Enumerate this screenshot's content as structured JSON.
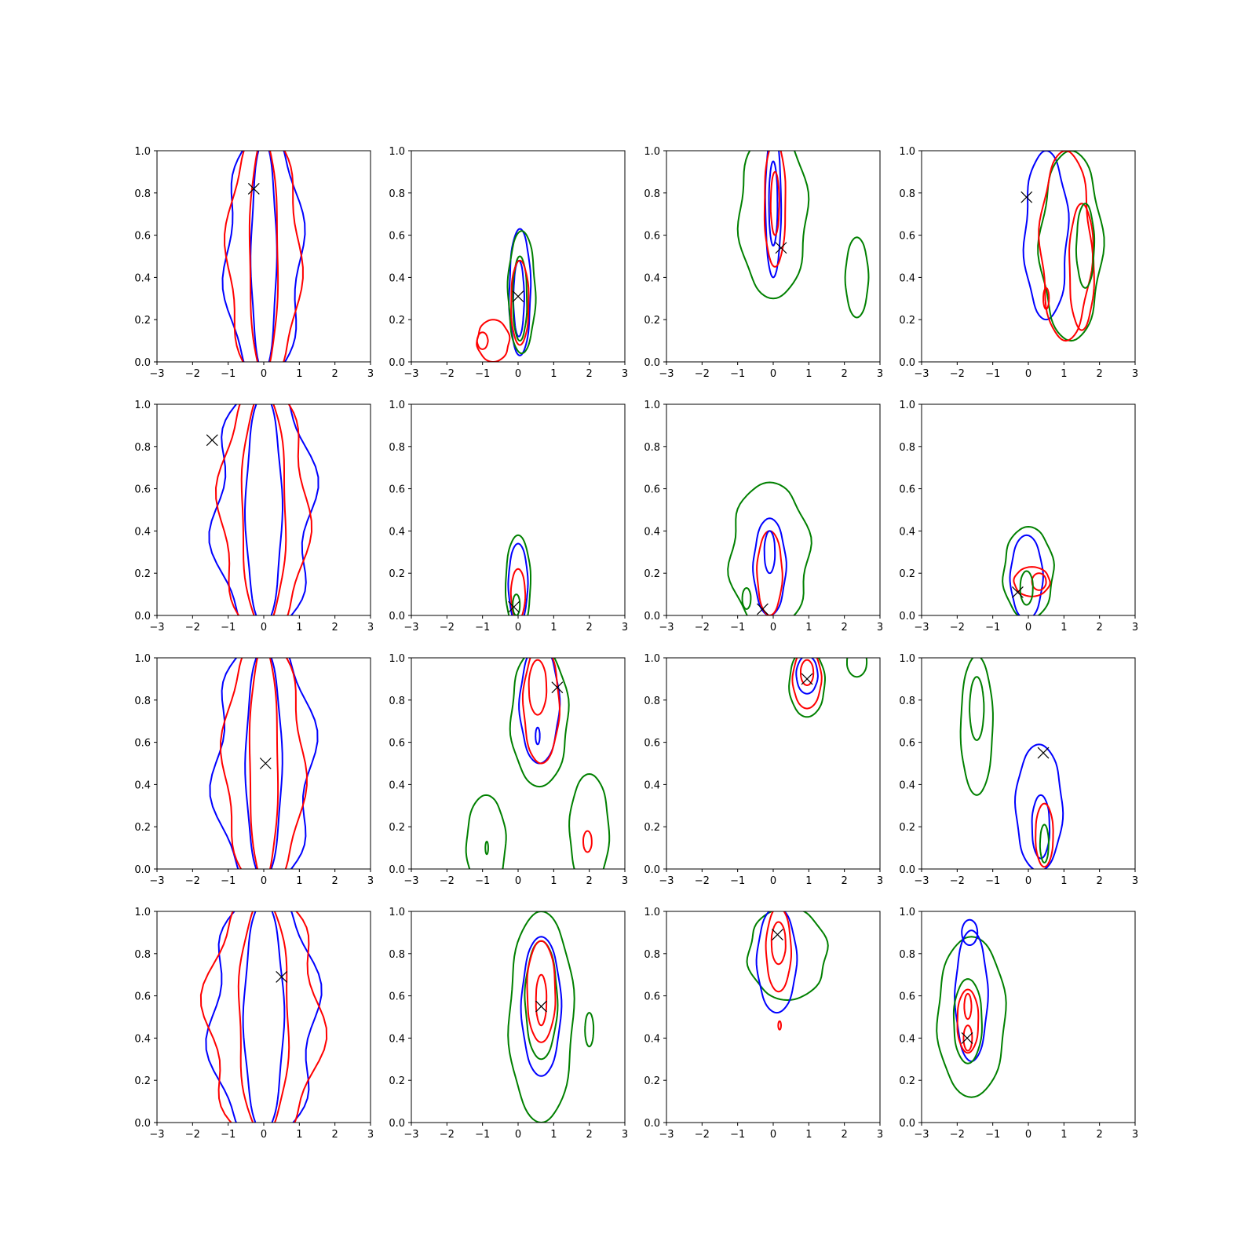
{
  "figure": {
    "layout": "4x4 grid of contour plots"
  },
  "colors": {
    "blue": "#0000ff",
    "red": "#ff0000",
    "green": "#008000",
    "marker": "#000000"
  },
  "axes_common": {
    "xlim": [
      -3,
      3
    ],
    "ylim": [
      0,
      1
    ],
    "xticks": [
      "−3",
      "−2",
      "−1",
      "0",
      "1",
      "2",
      "3"
    ],
    "yticks": [
      "0.0",
      "0.2",
      "0.4",
      "0.6",
      "0.8",
      "1.0"
    ]
  },
  "chart_data": [
    {
      "type": "contour",
      "row": 0,
      "col": 0,
      "marker": {
        "x": -0.28,
        "y": 0.82
      },
      "contours": [
        {
          "color": "blue",
          "cx": 0.0,
          "cy": 0.5,
          "rx": 1.05,
          "ry": 0.6,
          "wobble": 0.14
        },
        {
          "color": "blue",
          "cx": 0.0,
          "cy": 0.5,
          "rx": 0.35,
          "ry": 0.55,
          "wobble": 0.06
        },
        {
          "color": "red",
          "cx": 0.0,
          "cy": 0.5,
          "rx": 1.0,
          "ry": 0.6,
          "wobble": 0.12
        },
        {
          "color": "red",
          "cx": 0.0,
          "cy": 0.5,
          "rx": 0.4,
          "ry": 0.56,
          "wobble": 0.05
        }
      ]
    },
    {
      "type": "contour",
      "row": 0,
      "col": 1,
      "marker": {
        "x": 0.0,
        "y": 0.31
      },
      "contours": [
        {
          "color": "blue",
          "cx": 0.05,
          "cy": 0.33,
          "rx": 0.3,
          "ry": 0.3,
          "wobble": 0.05
        },
        {
          "color": "blue",
          "cx": 0.02,
          "cy": 0.3,
          "rx": 0.15,
          "ry": 0.18,
          "wobble": 0.03
        },
        {
          "color": "green",
          "cx": 0.1,
          "cy": 0.33,
          "rx": 0.38,
          "ry": 0.29,
          "wobble": 0.06
        },
        {
          "color": "green",
          "cx": 0.05,
          "cy": 0.3,
          "rx": 0.2,
          "ry": 0.2,
          "wobble": 0.04
        },
        {
          "color": "red",
          "cx": 0.05,
          "cy": 0.28,
          "rx": 0.25,
          "ry": 0.2,
          "wobble": 0.04
        },
        {
          "color": "red",
          "cx": -0.7,
          "cy": 0.1,
          "rx": 0.45,
          "ry": 0.1,
          "wobble": 0.05
        },
        {
          "color": "red",
          "cx": -1.0,
          "cy": 0.1,
          "rx": 0.15,
          "ry": 0.04,
          "wobble": 0.02
        }
      ]
    },
    {
      "type": "contour",
      "row": 0,
      "col": 2,
      "marker": {
        "x": 0.22,
        "y": 0.54
      },
      "contours": [
        {
          "color": "green",
          "cx": 0.0,
          "cy": 0.7,
          "rx": 0.95,
          "ry": 0.4,
          "wobble": 0.08
        },
        {
          "color": "green",
          "cx": 2.35,
          "cy": 0.4,
          "rx": 0.32,
          "ry": 0.19,
          "wobble": 0.03
        },
        {
          "color": "blue",
          "cx": 0.0,
          "cy": 0.75,
          "rx": 0.22,
          "ry": 0.35,
          "wobble": 0.03
        },
        {
          "color": "blue",
          "cx": 0.0,
          "cy": 0.75,
          "rx": 0.12,
          "ry": 0.2,
          "wobble": 0.02
        },
        {
          "color": "red",
          "cx": 0.05,
          "cy": 0.75,
          "rx": 0.3,
          "ry": 0.3,
          "wobble": 0.04
        },
        {
          "color": "red",
          "cx": 0.05,
          "cy": 0.75,
          "rx": 0.12,
          "ry": 0.15,
          "wobble": 0.02
        }
      ]
    },
    {
      "type": "contour",
      "row": 0,
      "col": 3,
      "marker": {
        "x": -0.05,
        "y": 0.78
      },
      "contours": [
        {
          "color": "blue",
          "cx": 0.5,
          "cy": 0.6,
          "rx": 0.6,
          "ry": 0.4,
          "wobble": 0.1
        },
        {
          "color": "green",
          "cx": 1.2,
          "cy": 0.55,
          "rx": 0.85,
          "ry": 0.45,
          "wobble": 0.1
        },
        {
          "color": "red",
          "cx": 1.05,
          "cy": 0.55,
          "rx": 0.7,
          "ry": 0.45,
          "wobble": 0.1
        },
        {
          "color": "red",
          "cx": 1.5,
          "cy": 0.45,
          "rx": 0.35,
          "ry": 0.3,
          "wobble": 0.05
        },
        {
          "color": "red",
          "cx": 0.5,
          "cy": 0.3,
          "rx": 0.08,
          "ry": 0.05,
          "wobble": 0.01
        },
        {
          "color": "green",
          "cx": 1.6,
          "cy": 0.55,
          "rx": 0.25,
          "ry": 0.2,
          "wobble": 0.04
        }
      ]
    },
    {
      "type": "contour",
      "row": 1,
      "col": 0,
      "marker": {
        "x": -1.45,
        "y": 0.83
      },
      "contours": [
        {
          "color": "blue",
          "cx": 0.0,
          "cy": 0.5,
          "rx": 1.35,
          "ry": 0.6,
          "wobble": 0.18
        },
        {
          "color": "blue",
          "cx": 0.0,
          "cy": 0.5,
          "rx": 0.5,
          "ry": 0.55,
          "wobble": 0.06
        },
        {
          "color": "red",
          "cx": 0.0,
          "cy": 0.5,
          "rx": 1.2,
          "ry": 0.6,
          "wobble": 0.14
        },
        {
          "color": "red",
          "cx": 0.0,
          "cy": 0.5,
          "rx": 0.62,
          "ry": 0.56,
          "wobble": 0.06
        }
      ]
    },
    {
      "type": "contour",
      "row": 1,
      "col": 1,
      "marker": {
        "x": -0.12,
        "y": 0.04
      },
      "contours": [
        {
          "color": "green",
          "cx": 0.0,
          "cy": 0.15,
          "rx": 0.35,
          "ry": 0.23,
          "wobble": 0.03
        },
        {
          "color": "blue",
          "cx": 0.0,
          "cy": 0.15,
          "rx": 0.27,
          "ry": 0.19,
          "wobble": 0.03
        },
        {
          "color": "red",
          "cx": 0.0,
          "cy": 0.1,
          "rx": 0.2,
          "ry": 0.12,
          "wobble": 0.02
        },
        {
          "color": "green",
          "cx": -0.05,
          "cy": 0.05,
          "rx": 0.1,
          "ry": 0.05,
          "wobble": 0.01
        }
      ]
    },
    {
      "type": "contour",
      "row": 1,
      "col": 2,
      "marker": {
        "x": -0.3,
        "y": 0.03
      },
      "contours": [
        {
          "color": "green",
          "cx": -0.1,
          "cy": 0.28,
          "rx": 1.1,
          "ry": 0.35,
          "wobble": 0.1
        },
        {
          "color": "blue",
          "cx": -0.1,
          "cy": 0.23,
          "rx": 0.45,
          "ry": 0.23,
          "wobble": 0.05
        },
        {
          "color": "red",
          "cx": -0.1,
          "cy": 0.2,
          "rx": 0.35,
          "ry": 0.2,
          "wobble": 0.04
        },
        {
          "color": "blue",
          "cx": -0.1,
          "cy": 0.3,
          "rx": 0.15,
          "ry": 0.1,
          "wobble": 0.02
        },
        {
          "color": "green",
          "cx": -0.75,
          "cy": 0.08,
          "rx": 0.12,
          "ry": 0.05,
          "wobble": 0.01
        }
      ]
    },
    {
      "type": "contour",
      "row": 1,
      "col": 3,
      "marker": {
        "x": -0.3,
        "y": 0.11
      },
      "contours": [
        {
          "color": "green",
          "cx": 0.0,
          "cy": 0.2,
          "rx": 0.7,
          "ry": 0.22,
          "wobble": 0.06
        },
        {
          "color": "blue",
          "cx": -0.05,
          "cy": 0.18,
          "rx": 0.45,
          "ry": 0.2,
          "wobble": 0.04
        },
        {
          "color": "red",
          "cx": 0.1,
          "cy": 0.16,
          "rx": 0.5,
          "ry": 0.07,
          "wobble": 0.03
        },
        {
          "color": "red",
          "cx": 0.3,
          "cy": 0.16,
          "rx": 0.2,
          "ry": 0.04,
          "wobble": 0.01
        },
        {
          "color": "green",
          "cx": -0.05,
          "cy": 0.13,
          "rx": 0.18,
          "ry": 0.08,
          "wobble": 0.02
        }
      ]
    },
    {
      "type": "contour",
      "row": 2,
      "col": 0,
      "marker": {
        "x": 0.05,
        "y": 0.5
      },
      "contours": [
        {
          "color": "blue",
          "cx": 0.0,
          "cy": 0.5,
          "rx": 1.35,
          "ry": 0.6,
          "wobble": 0.16
        },
        {
          "color": "blue",
          "cx": 0.0,
          "cy": 0.5,
          "rx": 0.5,
          "ry": 0.55,
          "wobble": 0.05
        },
        {
          "color": "red",
          "cx": 0.0,
          "cy": 0.5,
          "rx": 1.1,
          "ry": 0.6,
          "wobble": 0.12
        },
        {
          "color": "red",
          "cx": 0.0,
          "cy": 0.5,
          "rx": 0.4,
          "ry": 0.56,
          "wobble": 0.05
        }
      ]
    },
    {
      "type": "contour",
      "row": 2,
      "col": 1,
      "marker": {
        "x": 1.1,
        "y": 0.86
      },
      "contours": [
        {
          "color": "green",
          "cx": 0.6,
          "cy": 0.72,
          "rx": 0.8,
          "ry": 0.33,
          "wobble": 0.06
        },
        {
          "color": "blue",
          "cx": 0.6,
          "cy": 0.78,
          "rx": 0.55,
          "ry": 0.28,
          "wobble": 0.05
        },
        {
          "color": "red",
          "cx": 0.65,
          "cy": 0.78,
          "rx": 0.5,
          "ry": 0.28,
          "wobble": 0.05
        },
        {
          "color": "red",
          "cx": 0.55,
          "cy": 0.86,
          "rx": 0.25,
          "ry": 0.13,
          "wobble": 0.02
        },
        {
          "color": "blue",
          "cx": 0.55,
          "cy": 0.63,
          "rx": 0.06,
          "ry": 0.04,
          "wobble": 0.01
        },
        {
          "color": "green",
          "cx": -0.9,
          "cy": 0.12,
          "rx": 0.55,
          "ry": 0.23,
          "wobble": 0.04
        },
        {
          "color": "green",
          "cx": -0.88,
          "cy": 0.1,
          "rx": 0.04,
          "ry": 0.03,
          "wobble": 0.0
        },
        {
          "color": "green",
          "cx": 2.0,
          "cy": 0.18,
          "rx": 0.55,
          "ry": 0.27,
          "wobble": 0.04
        },
        {
          "color": "red",
          "cx": 1.95,
          "cy": 0.13,
          "rx": 0.12,
          "ry": 0.05,
          "wobble": 0.01
        }
      ]
    },
    {
      "type": "contour",
      "row": 2,
      "col": 2,
      "marker": {
        "x": 0.95,
        "y": 0.9
      },
      "contours": [
        {
          "color": "green",
          "cx": 0.95,
          "cy": 0.88,
          "rx": 0.5,
          "ry": 0.16,
          "wobble": 0.03
        },
        {
          "color": "red",
          "cx": 0.95,
          "cy": 0.9,
          "rx": 0.4,
          "ry": 0.14,
          "wobble": 0.03
        },
        {
          "color": "blue",
          "cx": 0.95,
          "cy": 0.92,
          "rx": 0.3,
          "ry": 0.09,
          "wobble": 0.02
        },
        {
          "color": "red",
          "cx": 0.95,
          "cy": 0.93,
          "rx": 0.18,
          "ry": 0.06,
          "wobble": 0.01
        },
        {
          "color": "green",
          "cx": 2.35,
          "cy": 0.98,
          "rx": 0.28,
          "ry": 0.07,
          "wobble": 0.01
        }
      ]
    },
    {
      "type": "contour",
      "row": 2,
      "col": 3,
      "marker": {
        "x": 0.42,
        "y": 0.55
      },
      "contours": [
        {
          "color": "green",
          "cx": -1.45,
          "cy": 0.68,
          "rx": 0.45,
          "ry": 0.33,
          "wobble": 0.03
        },
        {
          "color": "green",
          "cx": -1.45,
          "cy": 0.76,
          "rx": 0.2,
          "ry": 0.15,
          "wobble": 0.01
        },
        {
          "color": "blue",
          "cx": 0.3,
          "cy": 0.29,
          "rx": 0.65,
          "ry": 0.3,
          "wobble": 0.05
        },
        {
          "color": "blue",
          "cx": 0.35,
          "cy": 0.2,
          "rx": 0.25,
          "ry": 0.15,
          "wobble": 0.03
        },
        {
          "color": "red",
          "cx": 0.45,
          "cy": 0.16,
          "rx": 0.25,
          "ry": 0.15,
          "wobble": 0.02
        },
        {
          "color": "green",
          "cx": 0.45,
          "cy": 0.12,
          "rx": 0.12,
          "ry": 0.09,
          "wobble": 0.02
        }
      ]
    },
    {
      "type": "contour",
      "row": 3,
      "col": 0,
      "marker": {
        "x": 0.5,
        "y": 0.69
      },
      "contours": [
        {
          "color": "blue",
          "cx": 0.0,
          "cy": 0.5,
          "rx": 1.45,
          "ry": 0.6,
          "wobble": 0.16
        },
        {
          "color": "blue",
          "cx": 0.0,
          "cy": 0.5,
          "rx": 0.55,
          "ry": 0.55,
          "wobble": 0.06
        },
        {
          "color": "red",
          "cx": 0.0,
          "cy": 0.5,
          "rx": 1.55,
          "ry": 0.6,
          "wobble": 0.16
        },
        {
          "color": "red",
          "cx": 0.0,
          "cy": 0.5,
          "rx": 0.7,
          "ry": 0.56,
          "wobble": 0.07
        }
      ]
    },
    {
      "type": "contour",
      "row": 3,
      "col": 1,
      "marker": {
        "x": 0.65,
        "y": 0.55
      },
      "contours": [
        {
          "color": "green",
          "cx": 0.65,
          "cy": 0.5,
          "rx": 0.9,
          "ry": 0.5,
          "wobble": 0.06
        },
        {
          "color": "blue",
          "cx": 0.65,
          "cy": 0.55,
          "rx": 0.55,
          "ry": 0.33,
          "wobble": 0.04
        },
        {
          "color": "green",
          "cx": 0.65,
          "cy": 0.58,
          "rx": 0.45,
          "ry": 0.28,
          "wobble": 0.04
        },
        {
          "color": "red",
          "cx": 0.65,
          "cy": 0.62,
          "rx": 0.4,
          "ry": 0.24,
          "wobble": 0.03
        },
        {
          "color": "red",
          "cx": 0.65,
          "cy": 0.58,
          "rx": 0.15,
          "ry": 0.12,
          "wobble": 0.02
        },
        {
          "color": "green",
          "cx": 2.0,
          "cy": 0.44,
          "rx": 0.12,
          "ry": 0.08,
          "wobble": 0.01
        }
      ]
    },
    {
      "type": "contour",
      "row": 3,
      "col": 2,
      "marker": {
        "x": 0.12,
        "y": 0.89
      },
      "contours": [
        {
          "color": "green",
          "cx": 0.4,
          "cy": 0.8,
          "rx": 1.1,
          "ry": 0.22,
          "wobble": 0.06
        },
        {
          "color": "blue",
          "cx": 0.1,
          "cy": 0.77,
          "rx": 0.55,
          "ry": 0.25,
          "wobble": 0.04
        },
        {
          "color": "red",
          "cx": 0.15,
          "cy": 0.82,
          "rx": 0.35,
          "ry": 0.2,
          "wobble": 0.03
        },
        {
          "color": "red",
          "cx": 0.15,
          "cy": 0.85,
          "rx": 0.2,
          "ry": 0.1,
          "wobble": 0.02
        },
        {
          "color": "red",
          "cx": 0.18,
          "cy": 0.46,
          "rx": 0.04,
          "ry": 0.02,
          "wobble": 0.0
        }
      ]
    },
    {
      "type": "contour",
      "row": 3,
      "col": 3,
      "marker": {
        "x": -1.72,
        "y": 0.4
      },
      "contours": [
        {
          "color": "green",
          "cx": -1.6,
          "cy": 0.5,
          "rx": 0.95,
          "ry": 0.38,
          "wobble": 0.05
        },
        {
          "color": "blue",
          "cx": -1.6,
          "cy": 0.6,
          "rx": 0.45,
          "ry": 0.31,
          "wobble": 0.05
        },
        {
          "color": "blue",
          "cx": -1.65,
          "cy": 0.9,
          "rx": 0.22,
          "ry": 0.06,
          "wobble": 0.01
        },
        {
          "color": "green",
          "cx": -1.7,
          "cy": 0.48,
          "rx": 0.4,
          "ry": 0.2,
          "wobble": 0.03
        },
        {
          "color": "red",
          "cx": -1.7,
          "cy": 0.48,
          "rx": 0.3,
          "ry": 0.15,
          "wobble": 0.03
        },
        {
          "color": "red",
          "cx": -1.7,
          "cy": 0.4,
          "rx": 0.12,
          "ry": 0.06,
          "wobble": 0.01
        },
        {
          "color": "red",
          "cx": -1.7,
          "cy": 0.55,
          "rx": 0.1,
          "ry": 0.06,
          "wobble": 0.01
        }
      ]
    }
  ]
}
